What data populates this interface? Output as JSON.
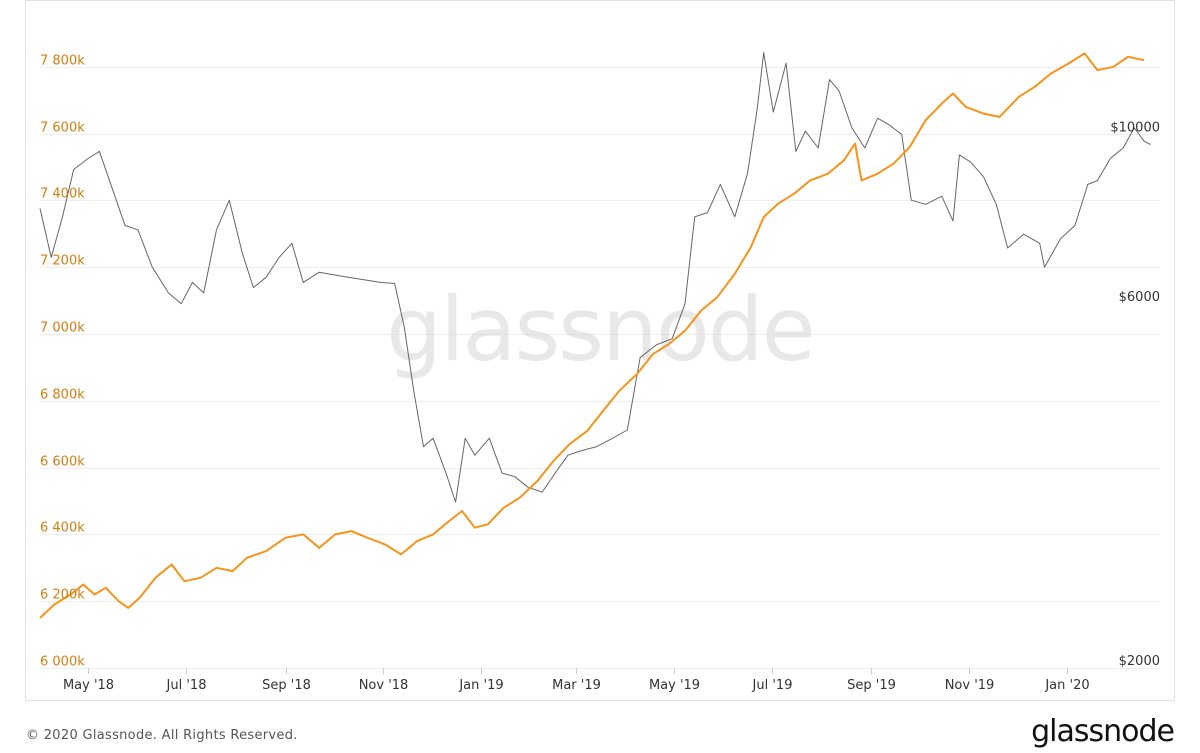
{
  "chart_data": {
    "type": "line",
    "x_range": [
      "2018-04-01",
      "2020-02-28"
    ],
    "x_ticks": [
      {
        "date": "2018-05-01",
        "label": "May '18"
      },
      {
        "date": "2018-07-01",
        "label": "Jul '18"
      },
      {
        "date": "2018-09-01",
        "label": "Sep '18"
      },
      {
        "date": "2018-11-01",
        "label": "Nov '18"
      },
      {
        "date": "2019-01-01",
        "label": "Jan '19"
      },
      {
        "date": "2019-03-01",
        "label": "Mar '19"
      },
      {
        "date": "2019-05-01",
        "label": "May '19"
      },
      {
        "date": "2019-07-01",
        "label": "Jul '19"
      },
      {
        "date": "2019-09-01",
        "label": "Sep '19"
      },
      {
        "date": "2019-11-01",
        "label": "Nov '19"
      },
      {
        "date": "2020-01-01",
        "label": "Jan '20"
      }
    ],
    "y_left": {
      "ylim": [
        6000000,
        8000000
      ],
      "ticks": [
        {
          "value": 6000000,
          "label": "6 000k"
        },
        {
          "value": 6200000,
          "label": "6 200k"
        },
        {
          "value": 6400000,
          "label": "6 400k"
        },
        {
          "value": 6600000,
          "label": "6 600k"
        },
        {
          "value": 6800000,
          "label": "6 800k"
        },
        {
          "value": 7000000,
          "label": "7 000k"
        },
        {
          "value": 7200000,
          "label": "7 200k"
        },
        {
          "value": 7400000,
          "label": "7 400k"
        },
        {
          "value": 7600000,
          "label": "7 600k"
        },
        {
          "value": 7800000,
          "label": "7 800k"
        }
      ],
      "color": "#d97c0c"
    },
    "y_right": {
      "scale": "log",
      "ylim": [
        2000,
        15000
      ],
      "ticks": [
        {
          "value": 2000,
          "label": "$2000"
        },
        {
          "value": 6000,
          "label": "$6000"
        },
        {
          "value": 10000,
          "label": "$10000"
        }
      ],
      "color": "#333333"
    },
    "grid": true,
    "legend": "none",
    "series": [
      {
        "axis": "left",
        "color": "#f7931a",
        "points": [
          [
            "2018-04-01",
            6150000
          ],
          [
            "2018-04-10",
            6190000
          ],
          [
            "2018-04-20",
            6220000
          ],
          [
            "2018-04-28",
            6250000
          ],
          [
            "2018-05-05",
            6220000
          ],
          [
            "2018-05-12",
            6240000
          ],
          [
            "2018-05-20",
            6200000
          ],
          [
            "2018-05-26",
            6180000
          ],
          [
            "2018-06-02",
            6210000
          ],
          [
            "2018-06-12",
            6270000
          ],
          [
            "2018-06-22",
            6310000
          ],
          [
            "2018-06-30",
            6260000
          ],
          [
            "2018-07-10",
            6270000
          ],
          [
            "2018-07-20",
            6300000
          ],
          [
            "2018-07-30",
            6290000
          ],
          [
            "2018-08-08",
            6330000
          ],
          [
            "2018-08-20",
            6350000
          ],
          [
            "2018-09-01",
            6390000
          ],
          [
            "2018-09-12",
            6400000
          ],
          [
            "2018-09-22",
            6360000
          ],
          [
            "2018-10-02",
            6400000
          ],
          [
            "2018-10-12",
            6410000
          ],
          [
            "2018-10-22",
            6390000
          ],
          [
            "2018-11-02",
            6370000
          ],
          [
            "2018-11-12",
            6340000
          ],
          [
            "2018-11-22",
            6380000
          ],
          [
            "2018-12-02",
            6400000
          ],
          [
            "2018-12-12",
            6440000
          ],
          [
            "2018-12-20",
            6470000
          ],
          [
            "2018-12-28",
            6420000
          ],
          [
            "2019-01-05",
            6430000
          ],
          [
            "2019-01-15",
            6480000
          ],
          [
            "2019-01-25",
            6510000
          ],
          [
            "2019-02-05",
            6560000
          ],
          [
            "2019-02-15",
            6620000
          ],
          [
            "2019-02-25",
            6670000
          ],
          [
            "2019-03-08",
            6710000
          ],
          [
            "2019-03-18",
            6770000
          ],
          [
            "2019-03-28",
            6830000
          ],
          [
            "2019-04-08",
            6880000
          ],
          [
            "2019-04-18",
            6940000
          ],
          [
            "2019-04-28",
            6970000
          ],
          [
            "2019-05-08",
            7010000
          ],
          [
            "2019-05-18",
            7070000
          ],
          [
            "2019-05-28",
            7110000
          ],
          [
            "2019-06-08",
            7180000
          ],
          [
            "2019-06-18",
            7260000
          ],
          [
            "2019-06-26",
            7350000
          ],
          [
            "2019-07-05",
            7390000
          ],
          [
            "2019-07-15",
            7420000
          ],
          [
            "2019-07-25",
            7460000
          ],
          [
            "2019-08-05",
            7480000
          ],
          [
            "2019-08-15",
            7520000
          ],
          [
            "2019-08-22",
            7570000
          ],
          [
            "2019-08-26",
            7460000
          ],
          [
            "2019-09-05",
            7480000
          ],
          [
            "2019-09-15",
            7510000
          ],
          [
            "2019-09-25",
            7560000
          ],
          [
            "2019-10-05",
            7640000
          ],
          [
            "2019-10-15",
            7690000
          ],
          [
            "2019-10-22",
            7720000
          ],
          [
            "2019-10-30",
            7680000
          ],
          [
            "2019-11-10",
            7660000
          ],
          [
            "2019-11-20",
            7650000
          ],
          [
            "2019-12-02",
            7710000
          ],
          [
            "2019-12-12",
            7740000
          ],
          [
            "2019-12-22",
            7780000
          ],
          [
            "2020-01-02",
            7810000
          ],
          [
            "2020-01-12",
            7840000
          ],
          [
            "2020-01-20",
            7790000
          ],
          [
            "2020-01-30",
            7800000
          ],
          [
            "2020-02-08",
            7830000
          ],
          [
            "2020-02-18",
            7820000
          ]
        ]
      },
      {
        "axis": "right",
        "color": "#666666",
        "points": [
          [
            "2018-04-01",
            8000
          ],
          [
            "2018-04-08",
            6900
          ],
          [
            "2018-04-15",
            7800
          ],
          [
            "2018-04-22",
            9000
          ],
          [
            "2018-05-01",
            9300
          ],
          [
            "2018-05-08",
            9500
          ],
          [
            "2018-05-16",
            8500
          ],
          [
            "2018-05-24",
            7600
          ],
          [
            "2018-06-01",
            7500
          ],
          [
            "2018-06-10",
            6700
          ],
          [
            "2018-06-20",
            6200
          ],
          [
            "2018-06-28",
            6000
          ],
          [
            "2018-07-05",
            6400
          ],
          [
            "2018-07-12",
            6200
          ],
          [
            "2018-07-20",
            7500
          ],
          [
            "2018-07-28",
            8200
          ],
          [
            "2018-08-05",
            7000
          ],
          [
            "2018-08-12",
            6300
          ],
          [
            "2018-08-20",
            6500
          ],
          [
            "2018-08-28",
            6900
          ],
          [
            "2018-09-05",
            7200
          ],
          [
            "2018-09-12",
            6400
          ],
          [
            "2018-09-22",
            6600
          ],
          [
            "2018-10-01",
            6550
          ],
          [
            "2018-10-10",
            6500
          ],
          [
            "2018-10-20",
            6450
          ],
          [
            "2018-10-30",
            6400
          ],
          [
            "2018-11-08",
            6380
          ],
          [
            "2018-11-14",
            5600
          ],
          [
            "2018-11-20",
            4600
          ],
          [
            "2018-11-26",
            3900
          ],
          [
            "2018-12-02",
            4000
          ],
          [
            "2018-12-10",
            3600
          ],
          [
            "2018-12-16",
            3300
          ],
          [
            "2018-12-22",
            4000
          ],
          [
            "2018-12-28",
            3800
          ],
          [
            "2019-01-06",
            4000
          ],
          [
            "2019-01-14",
            3600
          ],
          [
            "2019-01-22",
            3560
          ],
          [
            "2019-01-30",
            3450
          ],
          [
            "2019-02-08",
            3400
          ],
          [
            "2019-02-16",
            3600
          ],
          [
            "2019-02-24",
            3800
          ],
          [
            "2019-03-04",
            3850
          ],
          [
            "2019-03-14",
            3900
          ],
          [
            "2019-03-24",
            4000
          ],
          [
            "2019-04-02",
            4100
          ],
          [
            "2019-04-10",
            5100
          ],
          [
            "2019-04-20",
            5300
          ],
          [
            "2019-04-30",
            5400
          ],
          [
            "2019-05-08",
            6000
          ],
          [
            "2019-05-14",
            7800
          ],
          [
            "2019-05-22",
            7900
          ],
          [
            "2019-05-30",
            8600
          ],
          [
            "2019-06-08",
            7800
          ],
          [
            "2019-06-16",
            8900
          ],
          [
            "2019-06-22",
            10800
          ],
          [
            "2019-06-26",
            12800
          ],
          [
            "2019-07-02",
            10700
          ],
          [
            "2019-07-10",
            12400
          ],
          [
            "2019-07-16",
            9500
          ],
          [
            "2019-07-22",
            10100
          ],
          [
            "2019-07-30",
            9600
          ],
          [
            "2019-08-06",
            11800
          ],
          [
            "2019-08-12",
            11400
          ],
          [
            "2019-08-20",
            10200
          ],
          [
            "2019-08-28",
            9600
          ],
          [
            "2019-09-05",
            10500
          ],
          [
            "2019-09-12",
            10300
          ],
          [
            "2019-09-20",
            10000
          ],
          [
            "2019-09-26",
            8200
          ],
          [
            "2019-10-05",
            8100
          ],
          [
            "2019-10-15",
            8300
          ],
          [
            "2019-10-22",
            7700
          ],
          [
            "2019-10-26",
            9400
          ],
          [
            "2019-11-02",
            9200
          ],
          [
            "2019-11-10",
            8800
          ],
          [
            "2019-11-18",
            8100
          ],
          [
            "2019-11-25",
            7100
          ],
          [
            "2019-12-05",
            7400
          ],
          [
            "2019-12-15",
            7200
          ],
          [
            "2019-12-18",
            6700
          ],
          [
            "2019-12-28",
            7300
          ],
          [
            "2020-01-06",
            7600
          ],
          [
            "2020-01-14",
            8600
          ],
          [
            "2020-01-20",
            8700
          ],
          [
            "2020-01-28",
            9300
          ],
          [
            "2020-02-05",
            9600
          ],
          [
            "2020-02-12",
            10200
          ],
          [
            "2020-02-18",
            9800
          ],
          [
            "2020-02-22",
            9700
          ]
        ]
      }
    ]
  },
  "watermark": "glassnode",
  "footer": {
    "copyright": "© 2020 Glassnode. All Rights Reserved.",
    "logo": "glassnode"
  }
}
